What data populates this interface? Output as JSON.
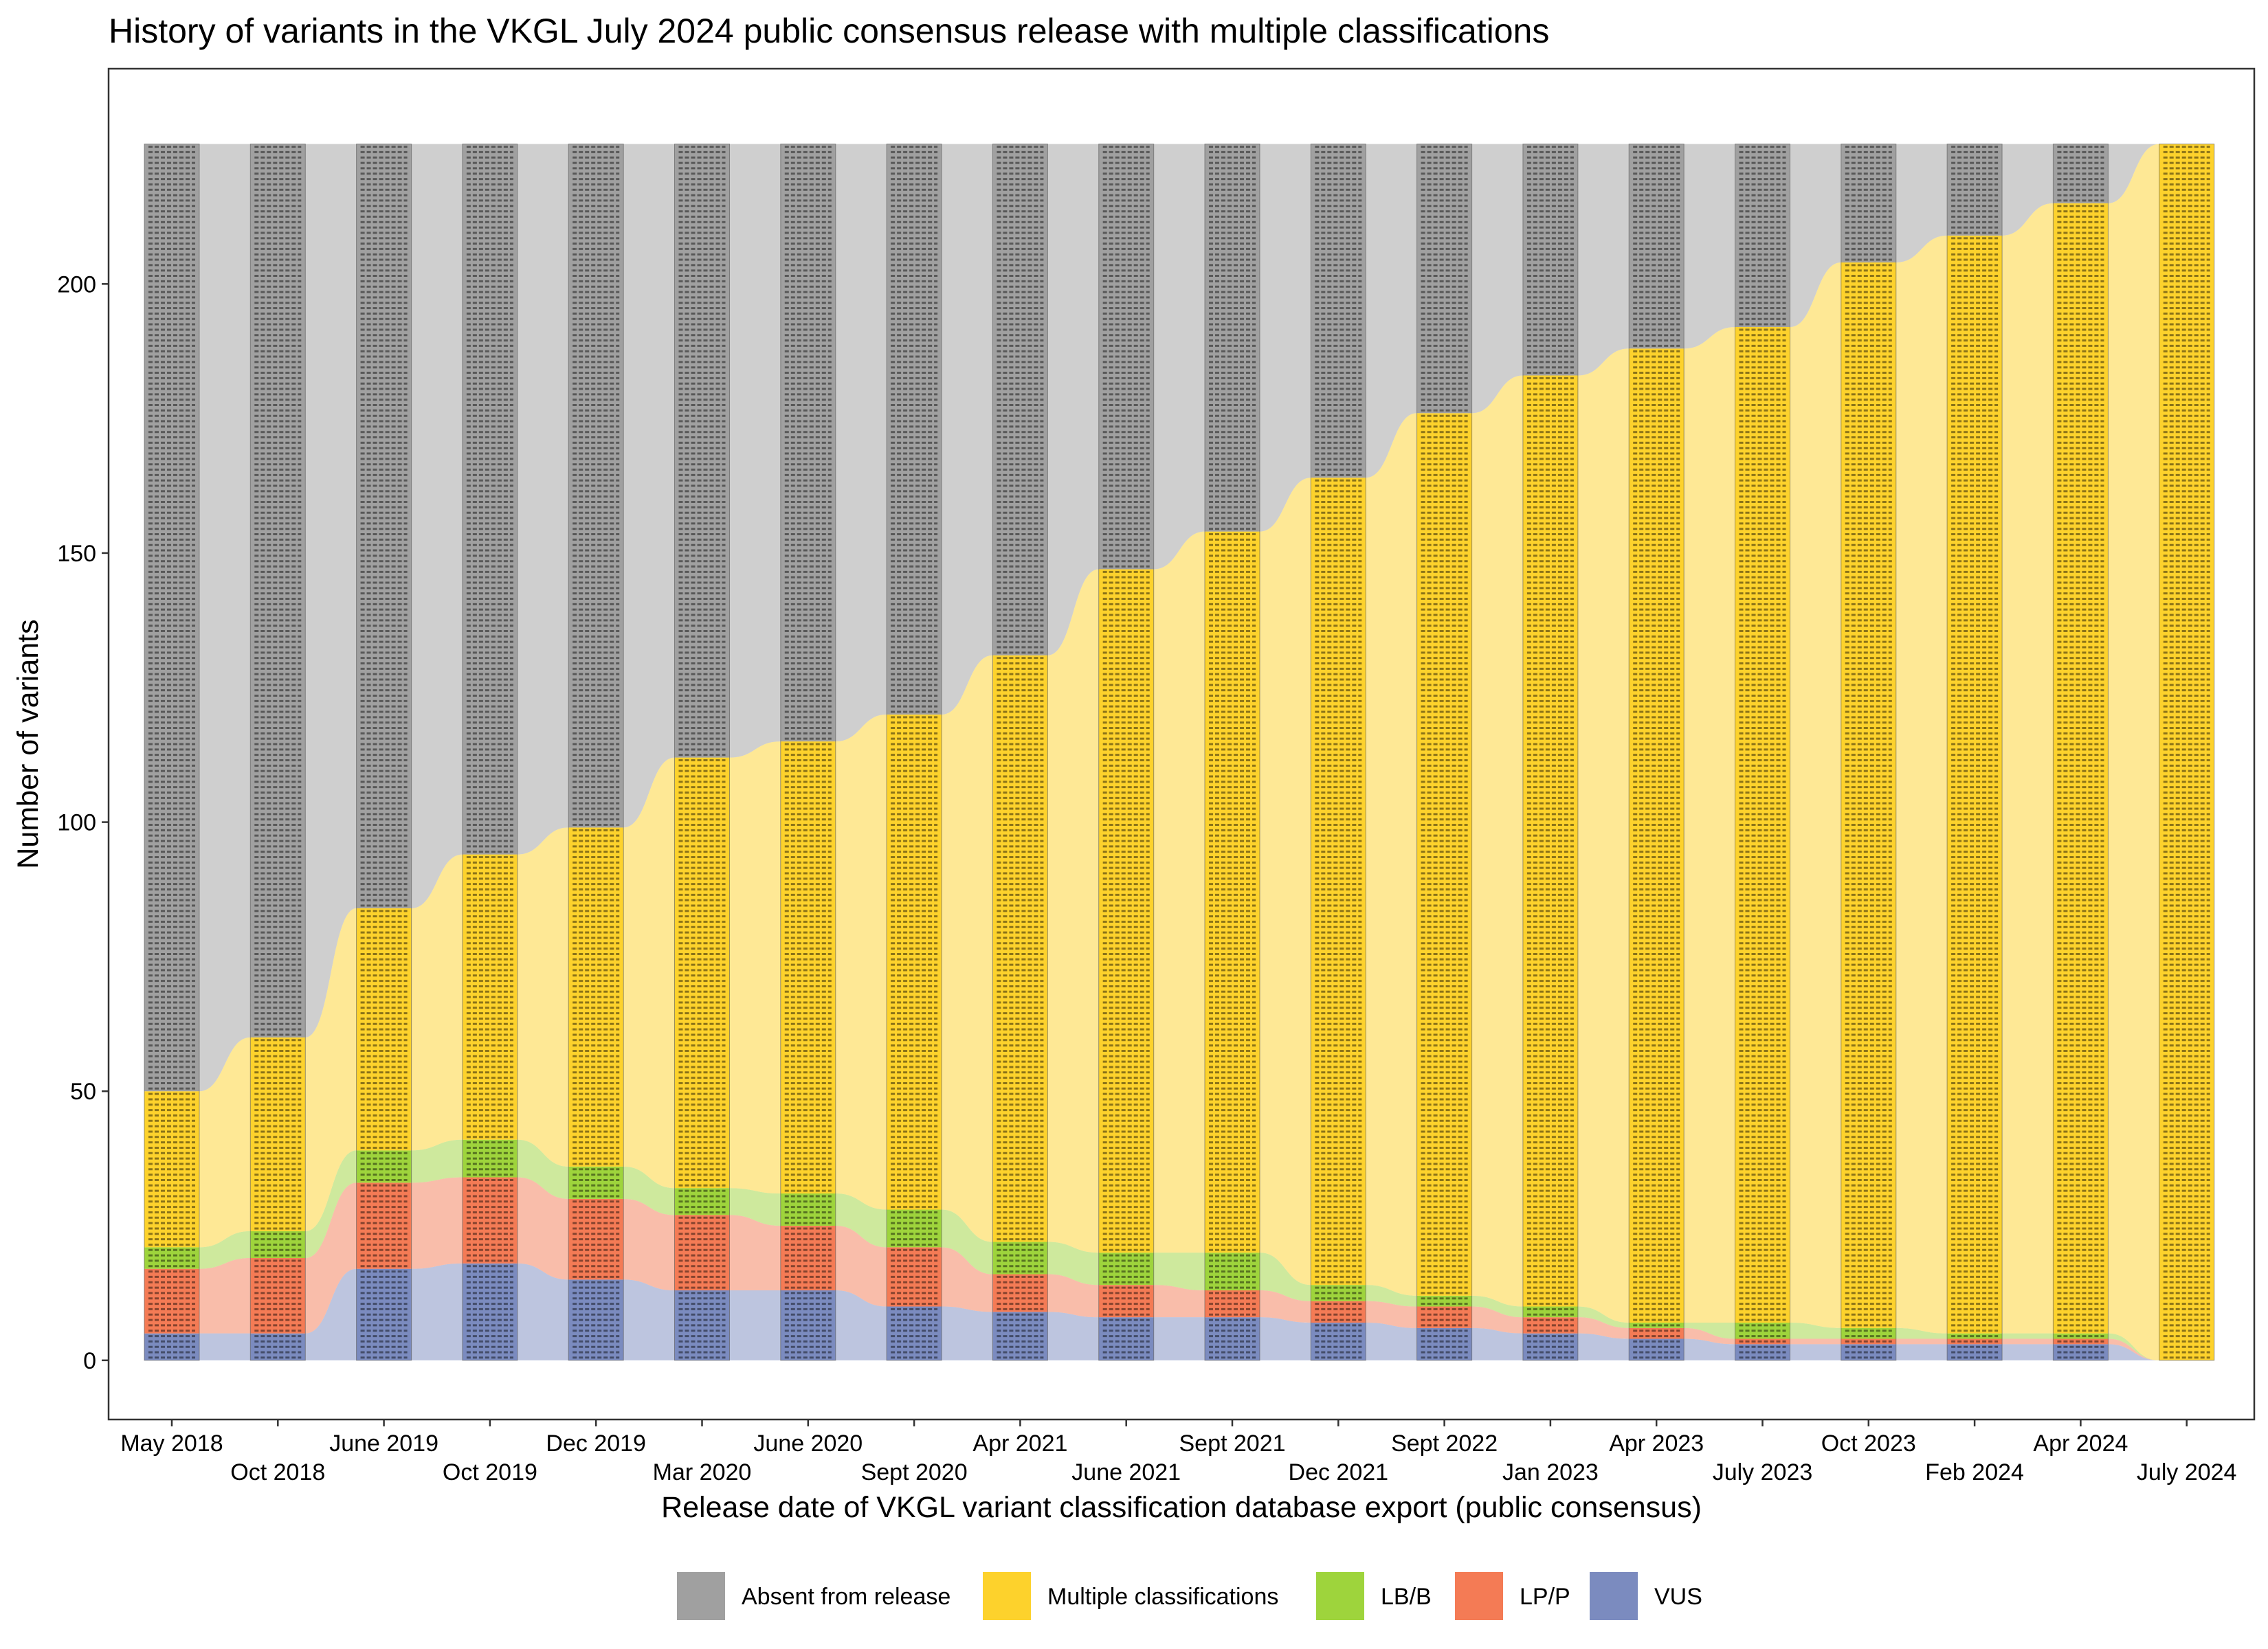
{
  "chart_data": {
    "type": "alluvial",
    "title": "History of variants in the VKGL July 2024 public consensus release with multiple classifications",
    "xlabel": "Release date of VKGL variant classification database export (public consensus)",
    "ylabel": "Number of variants",
    "ylim": [
      -11,
      240
    ],
    "yticks": [
      0,
      50,
      100,
      150,
      200
    ],
    "total_variants": 226,
    "categories": [
      "May 2018",
      "Oct 2018",
      "June 2019",
      "Oct 2019",
      "Dec 2019",
      "Mar 2020",
      "June 2020",
      "Sept 2020",
      "Apr 2021",
      "June 2021",
      "Sept 2021",
      "Dec 2021",
      "Sept 2022",
      "Jan 2023",
      "Apr 2023",
      "July 2023",
      "Oct 2023",
      "Feb 2024",
      "Apr 2024",
      "July 2024"
    ],
    "series": [
      {
        "name": "VUS",
        "color": "#7b8bbf",
        "values": [
          5,
          5,
          17,
          18,
          15,
          13,
          13,
          10,
          9,
          8,
          8,
          7,
          6,
          5,
          4,
          3,
          3,
          3,
          3,
          0
        ]
      },
      {
        "name": "LP/P",
        "color": "#f47b55",
        "values": [
          12,
          14,
          16,
          16,
          15,
          14,
          12,
          11,
          7,
          6,
          5,
          4,
          4,
          3,
          2,
          1,
          1,
          1,
          1,
          0
        ]
      },
      {
        "name": "LB/B",
        "color": "#9ed43c",
        "values": [
          4,
          5,
          6,
          7,
          6,
          5,
          6,
          7,
          6,
          6,
          7,
          3,
          2,
          2,
          1,
          3,
          2,
          1,
          1,
          0
        ]
      },
      {
        "name": "Multiple classifications",
        "color": "#fdd22c",
        "values": [
          29,
          36,
          45,
          53,
          63,
          80,
          84,
          92,
          109,
          127,
          134,
          150,
          164,
          173,
          181,
          185,
          198,
          204,
          210,
          226
        ]
      },
      {
        "name": "Absent from release",
        "color": "#a0a0a0",
        "values": [
          176,
          166,
          142,
          132,
          127,
          114,
          111,
          106,
          95,
          79,
          72,
          62,
          50,
          43,
          38,
          34,
          22,
          17,
          11,
          0
        ]
      }
    ],
    "legend_position": "bottom",
    "grid": false
  },
  "legend": {
    "items": [
      {
        "label": "Absent from release",
        "color": "#a0a0a0"
      },
      {
        "label": "Multiple classifications",
        "color": "#fdd22c"
      },
      {
        "label": "LB/B",
        "color": "#9ed43c"
      },
      {
        "label": "LP/P",
        "color": "#f47b55"
      },
      {
        "label": "VUS",
        "color": "#7b8bbf"
      }
    ]
  }
}
